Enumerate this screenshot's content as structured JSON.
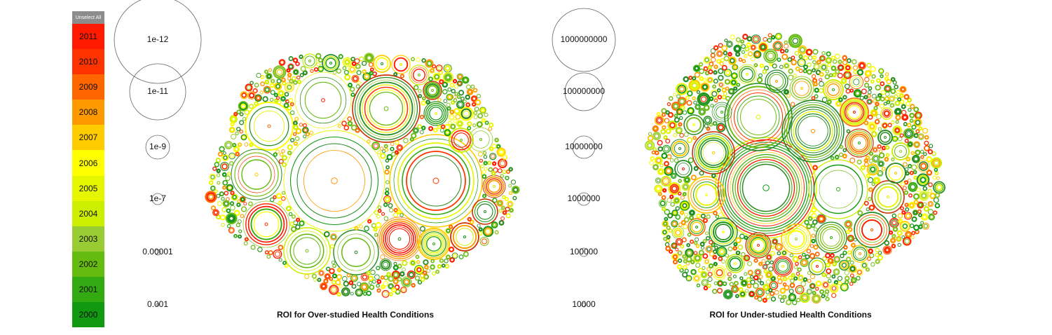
{
  "legend": {
    "unselect_label": "Unselect All",
    "years": [
      {
        "label": "2011",
        "color": "#ff1a00"
      },
      {
        "label": "2010",
        "color": "#ff3300"
      },
      {
        "label": "2009",
        "color": "#ff6600"
      },
      {
        "label": "2008",
        "color": "#ff9900"
      },
      {
        "label": "2007",
        "color": "#ffcc00"
      },
      {
        "label": "2006",
        "color": "#ffff00"
      },
      {
        "label": "2005",
        "color": "#e6f500"
      },
      {
        "label": "2004",
        "color": "#ccee00"
      },
      {
        "label": "2003",
        "color": "#99cc33"
      },
      {
        "label": "2002",
        "color": "#66bb11"
      },
      {
        "label": "2001",
        "color": "#33aa11"
      },
      {
        "label": "2000",
        "color": "#119911"
      }
    ]
  },
  "chart_data": [
    {
      "type": "bubble-packing",
      "title": "ROI for Over-studied Health Conditions",
      "size_scale": [
        "1e-12",
        "1e-11",
        "1e-9",
        "1e-7",
        "0.00001",
        "0.001"
      ]
    },
    {
      "type": "bubble-packing",
      "title": "ROI for Under-studied Health Conditions",
      "size_scale": [
        "1000000000",
        "100000000",
        "10000000",
        "1000000",
        "100000",
        "10000"
      ]
    }
  ]
}
